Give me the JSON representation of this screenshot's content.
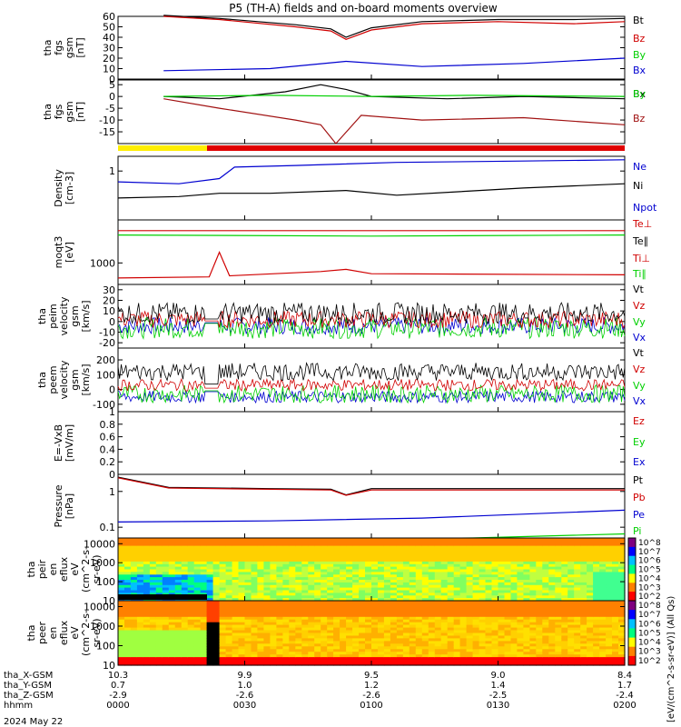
{
  "title": "P5 (TH-A) fields and on-board moments overview",
  "date_label": "2024 May 22",
  "ephemeris": {
    "row_labels": [
      "tha_X-GSM",
      "tha_Y-GSM",
      "tha_Z-GSM",
      "hhmm"
    ],
    "columns": [
      [
        "10.3",
        "0.7",
        "-2.9",
        "0000"
      ],
      [
        "9.9",
        "1.0",
        "-2.6",
        "0030"
      ],
      [
        "9.5",
        "1.2",
        "-2.6",
        "0100"
      ],
      [
        "9.0",
        "1.4",
        "-2.5",
        "0130"
      ],
      [
        "8.4",
        "1.7",
        "-2.4",
        "0200"
      ]
    ]
  },
  "colorbar": {
    "labels": [
      "10^8",
      "10^7",
      "10^6",
      "10^5",
      "10^4",
      "10^3",
      "10^2"
    ],
    "unit": "[eV/(cm^2-s-sr-eV)] (All Qs)",
    "colors": [
      "#7f007f",
      "#0000ff",
      "#00c0ff",
      "#00ff80",
      "#ffff00",
      "#ff8000",
      "#ff0000"
    ]
  },
  "colors": {
    "black": "#000000",
    "red": "#d00000",
    "green": "#00d000",
    "blue": "#0000d0",
    "darkred": "#a01010",
    "yellow": "#ffee00"
  },
  "chart_data": [
    {
      "type": "line",
      "id": "fgs_btot",
      "ylabel": [
        "tha",
        "fgs",
        "gsm",
        "[nT]"
      ],
      "ylim": [
        0,
        60
      ],
      "yticks": [
        0,
        10,
        20,
        30,
        40,
        50,
        60
      ],
      "series": [
        {
          "name": "Bt",
          "color": "black",
          "x": [
            0.09,
            0.2,
            0.35,
            0.42,
            0.45,
            0.5,
            0.6,
            0.75,
            0.9,
            1.0
          ],
          "y": [
            61,
            58,
            52,
            48,
            40,
            49,
            55,
            57,
            57,
            58
          ]
        },
        {
          "name": "Bz",
          "color": "red",
          "x": [
            0.09,
            0.2,
            0.35,
            0.42,
            0.45,
            0.5,
            0.6,
            0.75,
            0.9,
            1.0
          ],
          "y": [
            60,
            57,
            50,
            46,
            38,
            47,
            53,
            55,
            53,
            55
          ]
        },
        {
          "name": "By",
          "color": "green",
          "x": [
            0,
            1
          ],
          "y": [
            null,
            null
          ]
        },
        {
          "name": "Bx",
          "color": "blue",
          "x": [
            0.09,
            0.3,
            0.45,
            0.6,
            0.8,
            1.0
          ],
          "y": [
            8,
            10,
            17,
            12,
            15,
            20
          ]
        }
      ]
    },
    {
      "type": "line",
      "id": "fgs_comp",
      "ylabel": [
        "tha",
        "fgs",
        "gsm",
        "[nT]"
      ],
      "ylim": [
        -20,
        7
      ],
      "yticks": [
        -15,
        -10,
        -5,
        0,
        5
      ],
      "series": [
        {
          "name": "Bx",
          "color": "black",
          "x": [
            0.09,
            0.2,
            0.33,
            0.4,
            0.45,
            0.5,
            0.65,
            0.8,
            1.0
          ],
          "y": [
            0,
            -1,
            2,
            5,
            3,
            0,
            -1,
            0,
            -1
          ]
        },
        {
          "name": "By",
          "color": "green",
          "x": [
            0.09,
            0.3,
            0.5,
            0.7,
            1.0
          ],
          "y": [
            0,
            0.5,
            0,
            0.5,
            0
          ]
        },
        {
          "name": "Bz",
          "color": "darkred",
          "x": [
            0.09,
            0.2,
            0.35,
            0.4,
            0.43,
            0.48,
            0.6,
            0.8,
            1.0
          ],
          "y": [
            -1,
            -5,
            -10,
            -12,
            -20,
            -8,
            -10,
            -9,
            -12
          ]
        }
      ]
    },
    {
      "type": "line",
      "id": "density",
      "ylabel": [
        "Density",
        "[cm-3]"
      ],
      "ylim": [
        0.1,
        2
      ],
      "yticks": [
        1
      ],
      "series": [
        {
          "name": "Ne",
          "color": "blue",
          "x": [
            0.0,
            0.12,
            0.2,
            0.23,
            0.35,
            0.55,
            0.8,
            1.0
          ],
          "y": [
            0.6,
            0.55,
            0.7,
            1.2,
            1.3,
            1.5,
            1.6,
            1.7
          ]
        },
        {
          "name": "Ni",
          "color": "black",
          "x": [
            0.0,
            0.12,
            0.2,
            0.3,
            0.45,
            0.55,
            0.8,
            1.0
          ],
          "y": [
            0.28,
            0.3,
            0.35,
            0.35,
            0.4,
            0.32,
            0.45,
            0.55
          ]
        },
        {
          "name": "Npot",
          "color": "blue",
          "x": [
            0,
            1
          ],
          "y": [
            null,
            null
          ]
        }
      ]
    },
    {
      "type": "line",
      "id": "temperature",
      "ylabel": [
        "moqt3",
        "[eV]"
      ],
      "ylim": [
        0,
        3000
      ],
      "yticks": [
        1000
      ],
      "series": [
        {
          "name": "Te⊥",
          "color": "red",
          "x": [
            0.0,
            0.5,
            1.0
          ],
          "y": [
            2500,
            2500,
            2500
          ]
        },
        {
          "name": "Te∥",
          "color": "black",
          "x": [
            0,
            1
          ],
          "y": [
            null,
            null
          ]
        },
        {
          "name": "Ti⊥",
          "color": "red",
          "x": [
            0.0,
            0.18,
            0.2,
            0.22,
            0.4,
            0.45,
            0.5,
            1.0
          ],
          "y": [
            300,
            350,
            1500,
            400,
            600,
            700,
            500,
            450
          ]
        },
        {
          "name": "Ti∥",
          "color": "green",
          "x": [
            0.0,
            0.5,
            1.0
          ],
          "y": [
            2300,
            2250,
            2300
          ]
        }
      ]
    },
    {
      "type": "line",
      "id": "peim_vel",
      "ylabel": [
        "tha",
        "peim",
        "velocity",
        "gsm",
        "[km/s]"
      ],
      "ylim": [
        -25,
        35
      ],
      "yticks": [
        -20,
        -10,
        0,
        10,
        20,
        30
      ],
      "series": [
        {
          "name": "Vt",
          "color": "black"
        },
        {
          "name": "Vz",
          "color": "red"
        },
        {
          "name": "Vy",
          "color": "green"
        },
        {
          "name": "Vx",
          "color": "blue"
        }
      ]
    },
    {
      "type": "line",
      "id": "peem_vel",
      "ylabel": [
        "tha",
        "peem",
        "velocity",
        "gsm",
        "[km/s]"
      ],
      "ylim": [
        -150,
        280
      ],
      "yticks": [
        -100,
        0,
        100,
        200
      ],
      "series": [
        {
          "name": "Vt",
          "color": "black"
        },
        {
          "name": "Vz",
          "color": "red"
        },
        {
          "name": "Vy",
          "color": "green"
        },
        {
          "name": "Vx",
          "color": "blue"
        }
      ]
    },
    {
      "type": "line",
      "id": "efield",
      "ylabel": [
        "E=-VxB",
        "[mV/m]"
      ],
      "ylim": [
        0,
        1
      ],
      "yticks": [
        0.0,
        0.2,
        0.4,
        0.6,
        0.8,
        1.0
      ],
      "series": [
        {
          "name": "Ez",
          "color": "red"
        },
        {
          "name": "Ey",
          "color": "green"
        },
        {
          "name": "Ex",
          "color": "blue"
        }
      ]
    },
    {
      "type": "line",
      "id": "pressure",
      "ylabel": [
        "Pressure",
        "[nPa]"
      ],
      "ylim": [
        0.05,
        3
      ],
      "yticks": [
        0.1,
        1.0
      ],
      "series": [
        {
          "name": "Pt",
          "color": "black",
          "x": [
            0.0,
            0.05,
            0.1,
            0.3,
            0.42,
            0.45,
            0.5,
            1.0
          ],
          "y": [
            2.5,
            1.8,
            1.3,
            1.2,
            1.15,
            0.8,
            1.2,
            1.2
          ]
        },
        {
          "name": "Pb",
          "color": "red",
          "x": [
            0.0,
            0.1,
            0.42,
            0.45,
            0.5,
            1.0
          ],
          "y": [
            2.4,
            1.25,
            1.1,
            0.78,
            1.1,
            1.1
          ]
        },
        {
          "name": "Pe",
          "color": "blue",
          "x": [
            0.0,
            0.3,
            0.6,
            1.0
          ],
          "y": [
            0.14,
            0.15,
            0.18,
            0.3
          ]
        },
        {
          "name": "Pi",
          "color": "green",
          "x": [
            0.0,
            0.15,
            0.4,
            0.7,
            1.0
          ],
          "y": [
            0.035,
            0.04,
            0.045,
            0.05,
            0.065
          ]
        }
      ]
    },
    {
      "type": "heatmap",
      "id": "peir",
      "ylabel": [
        "tha",
        "peir",
        "en",
        "eflux",
        "eV",
        "(cm^2-s-",
        "sr-eV)"
      ],
      "ylim": [
        10,
        20000
      ],
      "yticks": [
        10,
        100,
        1000,
        10000
      ]
    },
    {
      "type": "heatmap",
      "id": "peer",
      "ylabel": [
        "tha",
        "peer",
        "en",
        "eflux",
        "eV",
        "(cm^2-s-",
        "sr-eV)"
      ],
      "ylim": [
        10,
        20000
      ],
      "yticks": [
        10,
        100,
        1000,
        10000
      ]
    }
  ]
}
